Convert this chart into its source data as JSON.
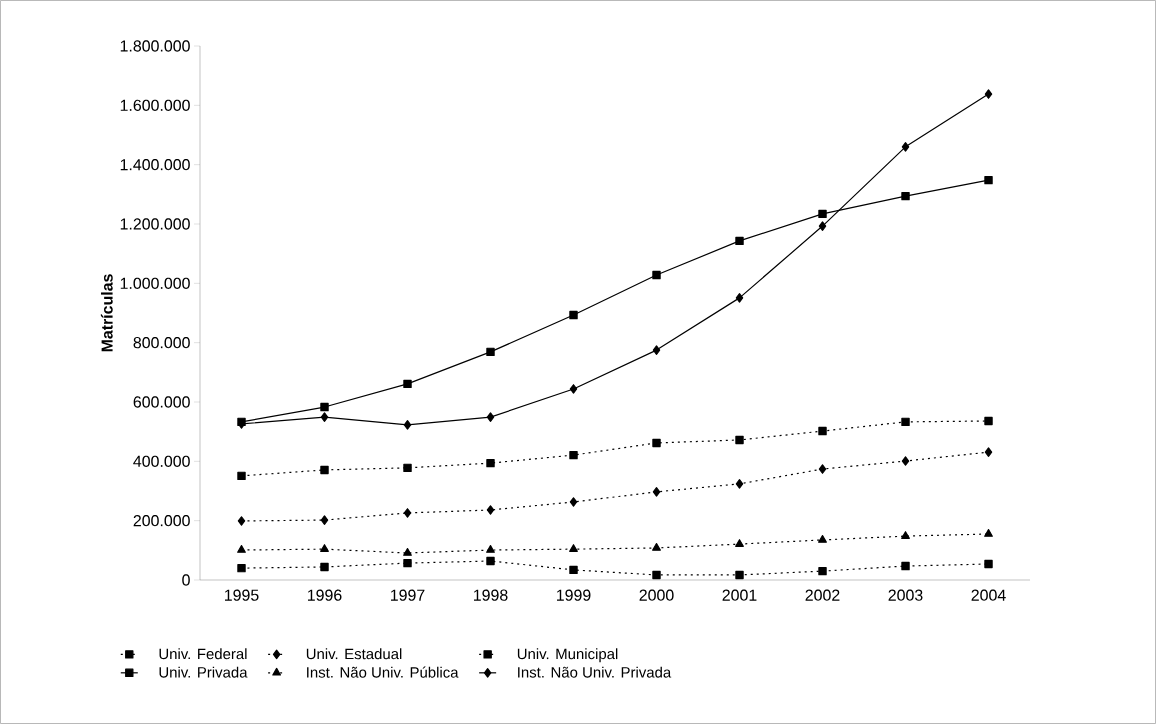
{
  "chart_data": {
    "type": "line",
    "ylabel": "Matrículas",
    "categories": [
      "1995",
      "1996",
      "1997",
      "1998",
      "1999",
      "2000",
      "2001",
      "2002",
      "2003",
      "2004"
    ],
    "ylim": [
      0,
      1800000
    ],
    "yticks": [
      0,
      {
        "value": 200000,
        "label": "200.000"
      },
      {
        "value": 400000,
        "label": "400.000"
      },
      {
        "value": 600000,
        "label": "600.000"
      },
      {
        "value": 800000,
        "label": "800.000"
      },
      {
        "value": 1000000,
        "label": "1.000.000"
      },
      {
        "value": 1200000,
        "label": "1.200.000"
      },
      {
        "value": 1400000,
        "label": "1.400.000"
      },
      {
        "value": 1600000,
        "label": "1.600.000"
      },
      {
        "value": 1800000,
        "label": "1.800.000"
      }
    ],
    "legend": "bottom",
    "series": [
      {
        "name": "Univ. Federal",
        "color": "#000000",
        "marker": "square",
        "line_style": "dotted",
        "values": [
          351000,
          371000,
          378000,
          394000,
          421000,
          462000,
          472000,
          502000,
          533000,
          536000
        ]
      },
      {
        "name": "Univ. Estadual",
        "color": "#000000",
        "marker": "diamond",
        "line_style": "dotted",
        "values": [
          199000,
          202000,
          226000,
          236000,
          263000,
          297000,
          324000,
          374000,
          401000,
          431000
        ]
      },
      {
        "name": "Univ. Municipal",
        "color": "#000000",
        "marker": "square",
        "line_style": "dotted",
        "values": [
          40000,
          44000,
          57000,
          64000,
          34000,
          17000,
          17000,
          30000,
          47000,
          54000
        ]
      },
      {
        "name": "Univ. Privada",
        "color": "#000000",
        "marker": "square",
        "line_style": "solid",
        "values": [
          533000,
          583000,
          661000,
          769000,
          893000,
          1028000,
          1143000,
          1234000,
          1294000,
          1348000
        ]
      },
      {
        "name": "Inst. Não Univ. Pública",
        "color": "#000000",
        "marker": "triangle",
        "line_style": "dotted",
        "values": [
          101000,
          104000,
          91000,
          101000,
          104000,
          108000,
          121000,
          135000,
          148000,
          155000
        ]
      },
      {
        "name": "Inst. Não Univ. Privada",
        "color": "#000000",
        "marker": "diamond",
        "line_style": "solid",
        "values": [
          526000,
          549000,
          523000,
          549000,
          644000,
          775000,
          951000,
          1193000,
          1460000,
          1638000
        ]
      }
    ]
  }
}
